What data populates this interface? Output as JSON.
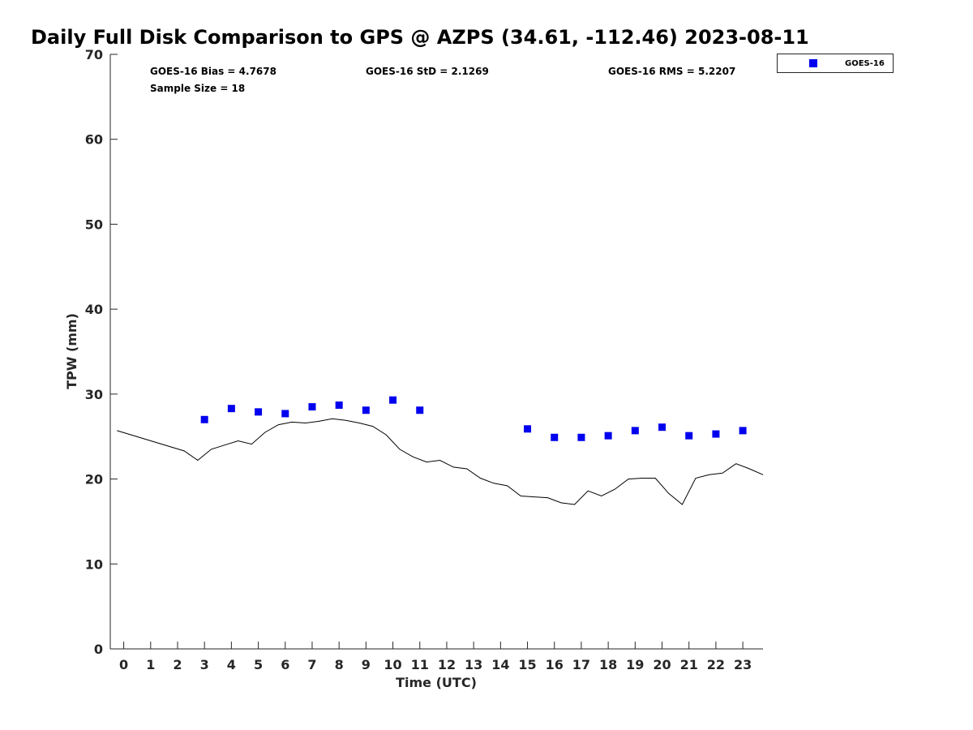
{
  "chart_data": {
    "type": "scatter",
    "title": "Daily Full Disk Comparison to GPS @ AZPS (34.61, -112.46) 2023-08-11",
    "xlabel": "Time (UTC)",
    "ylabel": "TPW (mm)",
    "xlim": [
      -0.5,
      23.75
    ],
    "ylim": [
      0,
      70
    ],
    "x_ticks": [
      0,
      1,
      2,
      3,
      4,
      5,
      6,
      7,
      8,
      9,
      10,
      11,
      12,
      13,
      14,
      15,
      16,
      17,
      18,
      19,
      20,
      21,
      22,
      23
    ],
    "y_ticks": [
      0,
      10,
      20,
      30,
      40,
      50,
      60,
      70
    ],
    "grid": false,
    "legend_position": "top-right, outside plot",
    "stats": {
      "bias": "GOES-16 Bias = 4.7678",
      "std": "GOES-16 StD = 2.1269",
      "rms": "GOES-16 RMS = 5.2207",
      "sample_size": "Sample Size = 18"
    },
    "series": [
      {
        "name": "GOES-16",
        "style": "blue-square-markers",
        "color": "#0000ee",
        "x": [
          3,
          4,
          5,
          6,
          7,
          8,
          9,
          10,
          11,
          15,
          16,
          17,
          18,
          19,
          20,
          21,
          22,
          23
        ],
        "y": [
          27.0,
          28.3,
          27.9,
          27.7,
          28.5,
          28.7,
          28.1,
          29.3,
          28.1,
          25.9,
          24.9,
          24.9,
          25.1,
          25.7,
          26.1,
          25.1,
          25.3,
          25.7
        ]
      },
      {
        "style": "black-line",
        "color": "#000000",
        "x": [
          -0.25,
          2.25,
          2.75,
          3.25,
          3.75,
          4.25,
          4.75,
          5.25,
          5.75,
          6.25,
          6.75,
          7.25,
          7.75,
          8.25,
          8.75,
          9.25,
          9.75,
          10.25,
          10.75,
          11.25,
          11.75,
          12.25,
          12.75,
          13.25,
          13.75,
          14.25,
          14.75,
          15.25,
          15.75,
          16.25,
          16.75,
          17.25,
          17.75,
          18.25,
          18.75,
          19.25,
          19.75,
          20.25,
          20.75,
          21.25,
          21.75,
          22.25,
          22.75,
          23.25,
          23.75
        ],
        "y": [
          25.7,
          23.3,
          22.2,
          23.5,
          24.0,
          24.5,
          24.1,
          25.5,
          26.4,
          26.7,
          26.6,
          26.8,
          27.1,
          26.9,
          26.6,
          26.2,
          25.2,
          23.5,
          22.6,
          22.0,
          22.2,
          21.4,
          21.2,
          20.1,
          19.5,
          19.2,
          18.0,
          17.9,
          17.8,
          17.2,
          17.0,
          18.6,
          18.0,
          18.8,
          20.0,
          20.1,
          20.1,
          18.3,
          17.0,
          20.1,
          20.5,
          20.7,
          21.8,
          21.2,
          20.5
        ]
      }
    ]
  }
}
